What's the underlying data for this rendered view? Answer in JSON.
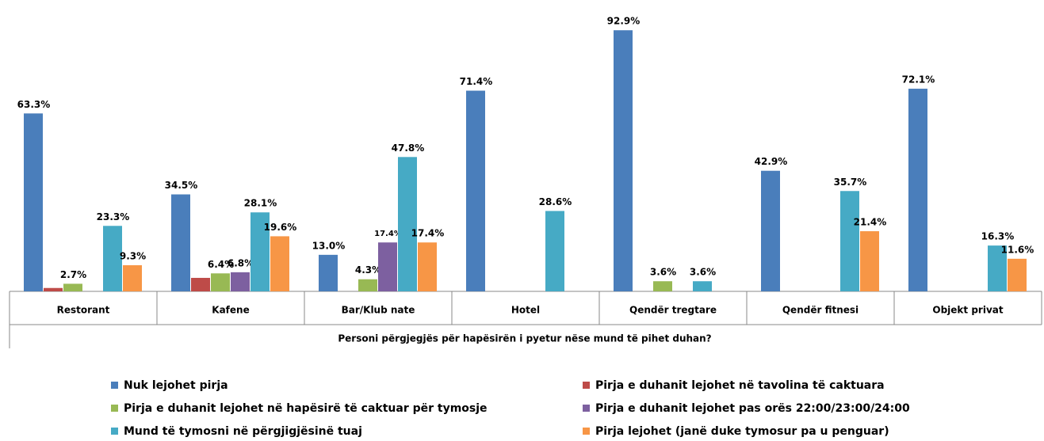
{
  "chart_data": {
    "type": "bar",
    "x_label": "Personi përgjegjës për hapësirën i pyetur nëse mund të pihet duhan?",
    "categories": [
      "Restorant",
      "Kafene",
      "Bar/Klub nate",
      "Hotel",
      "Qendër tregtare",
      "Qendër fitnesi",
      "Objekt privat"
    ],
    "ylim": [
      0,
      100
    ],
    "series": [
      {
        "name": "Nuk lejohet pirja",
        "color": "#4a7ebb",
        "values": [
          63.3,
          34.5,
          13.0,
          71.4,
          92.9,
          42.9,
          72.1
        ],
        "value_labels": [
          "63.3%",
          "34.5%",
          "13.0%",
          "71.4%",
          "92.9%",
          "42.9%",
          "72.1%"
        ]
      },
      {
        "name": "Pirja e duhanit lejohet në tavolina të caktuara",
        "color": "#be4b48",
        "values": [
          1.2,
          4.8,
          null,
          null,
          null,
          null,
          null
        ]
      },
      {
        "name": "Pirja e duhanit lejohet në hapësirë të caktuar për tymosje",
        "color": "#98b954",
        "values": [
          2.7,
          6.4,
          4.3,
          null,
          3.6,
          null,
          null
        ],
        "value_labels": [
          "2.7%",
          "6.4%",
          "4.3%",
          null,
          "3.6%",
          null,
          null
        ]
      },
      {
        "name": "Pirja e duhanit lejohet pas orës 22:00/23:00/24:00",
        "color": "#7d60a0",
        "values": [
          null,
          6.8,
          17.4,
          null,
          null,
          null,
          null
        ],
        "value_labels": [
          null,
          "6.8%",
          "17.4%",
          null,
          null,
          null,
          null
        ]
      },
      {
        "name": "Mund të tymosni në përgjigjësinë tuaj",
        "color": "#46aac5",
        "values": [
          23.3,
          28.1,
          47.8,
          28.6,
          3.6,
          35.7,
          16.3
        ],
        "value_labels": [
          "23.3%",
          "28.1%",
          "47.8%",
          "28.6%",
          "3.6%",
          "35.7%",
          "16.3%"
        ]
      },
      {
        "name": "Pirja lejohet (janë duke tymosur pa u penguar)",
        "color": "#f79646",
        "values": [
          9.3,
          19.6,
          17.4,
          null,
          null,
          21.4,
          11.6
        ],
        "value_labels": [
          "9.3%",
          "19.6%",
          "17.4%",
          null,
          null,
          "21.4%",
          "11.6%"
        ]
      }
    ]
  }
}
